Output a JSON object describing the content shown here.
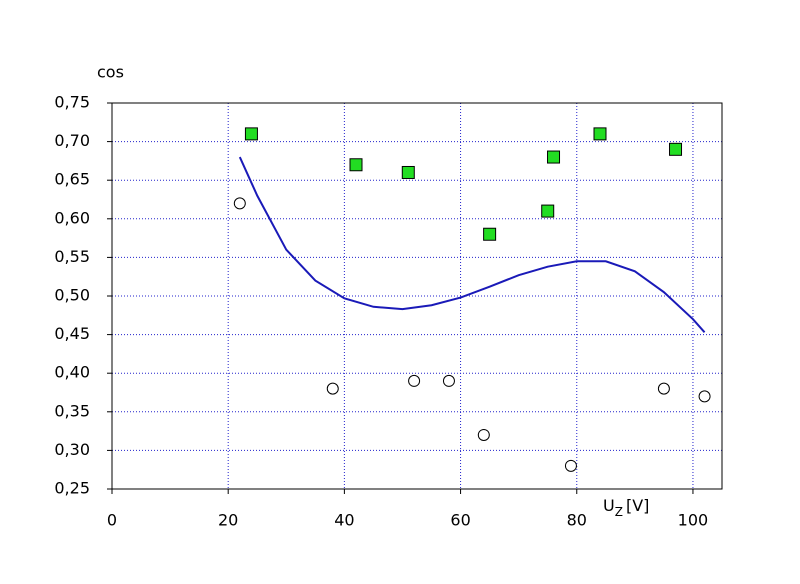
{
  "chart_data": {
    "type": "scatter",
    "y_label": "cos",
    "x_label": {
      "main": "U",
      "sub": "Z",
      "unit": "[V]"
    },
    "xlim": [
      0,
      105
    ],
    "ylim": [
      0.25,
      0.75
    ],
    "xticks": [
      0,
      20,
      40,
      60,
      80,
      100
    ],
    "yticks": [
      {
        "value": 0.25,
        "label": "0,25"
      },
      {
        "value": 0.3,
        "label": "0,30"
      },
      {
        "value": 0.35,
        "label": "0,35"
      },
      {
        "value": 0.4,
        "label": "0,40"
      },
      {
        "value": 0.45,
        "label": "0,45"
      },
      {
        "value": 0.5,
        "label": "0,50"
      },
      {
        "value": 0.55,
        "label": "0,55"
      },
      {
        "value": 0.6,
        "label": "0,60"
      },
      {
        "value": 0.65,
        "label": "0,65"
      },
      {
        "value": 0.7,
        "label": "0,70"
      },
      {
        "value": 0.75,
        "label": "0,75"
      }
    ],
    "grid": true,
    "series": [
      {
        "marker": "square",
        "color": "#22dd22",
        "x": [
          24,
          42,
          51,
          65,
          75,
          76,
          84,
          97
        ],
        "values": [
          0.71,
          0.67,
          0.66,
          0.58,
          0.61,
          0.68,
          0.71,
          0.69
        ]
      },
      {
        "marker": "circle",
        "color": "#ffffff",
        "x": [
          22,
          38,
          52,
          58,
          64,
          79,
          95,
          102
        ],
        "values": [
          0.62,
          0.38,
          0.39,
          0.39,
          0.32,
          0.28,
          0.38,
          0.37
        ]
      },
      {
        "marker": "line",
        "color": "#1a1ab8",
        "x": [
          22,
          25,
          30,
          35,
          40,
          45,
          50,
          55,
          60,
          65,
          70,
          75,
          80,
          85,
          90,
          95,
          100,
          102
        ],
        "values": [
          0.68,
          0.63,
          0.56,
          0.52,
          0.497,
          0.486,
          0.483,
          0.488,
          0.498,
          0.512,
          0.527,
          0.538,
          0.545,
          0.545,
          0.532,
          0.505,
          0.47,
          0.453
        ]
      }
    ]
  }
}
